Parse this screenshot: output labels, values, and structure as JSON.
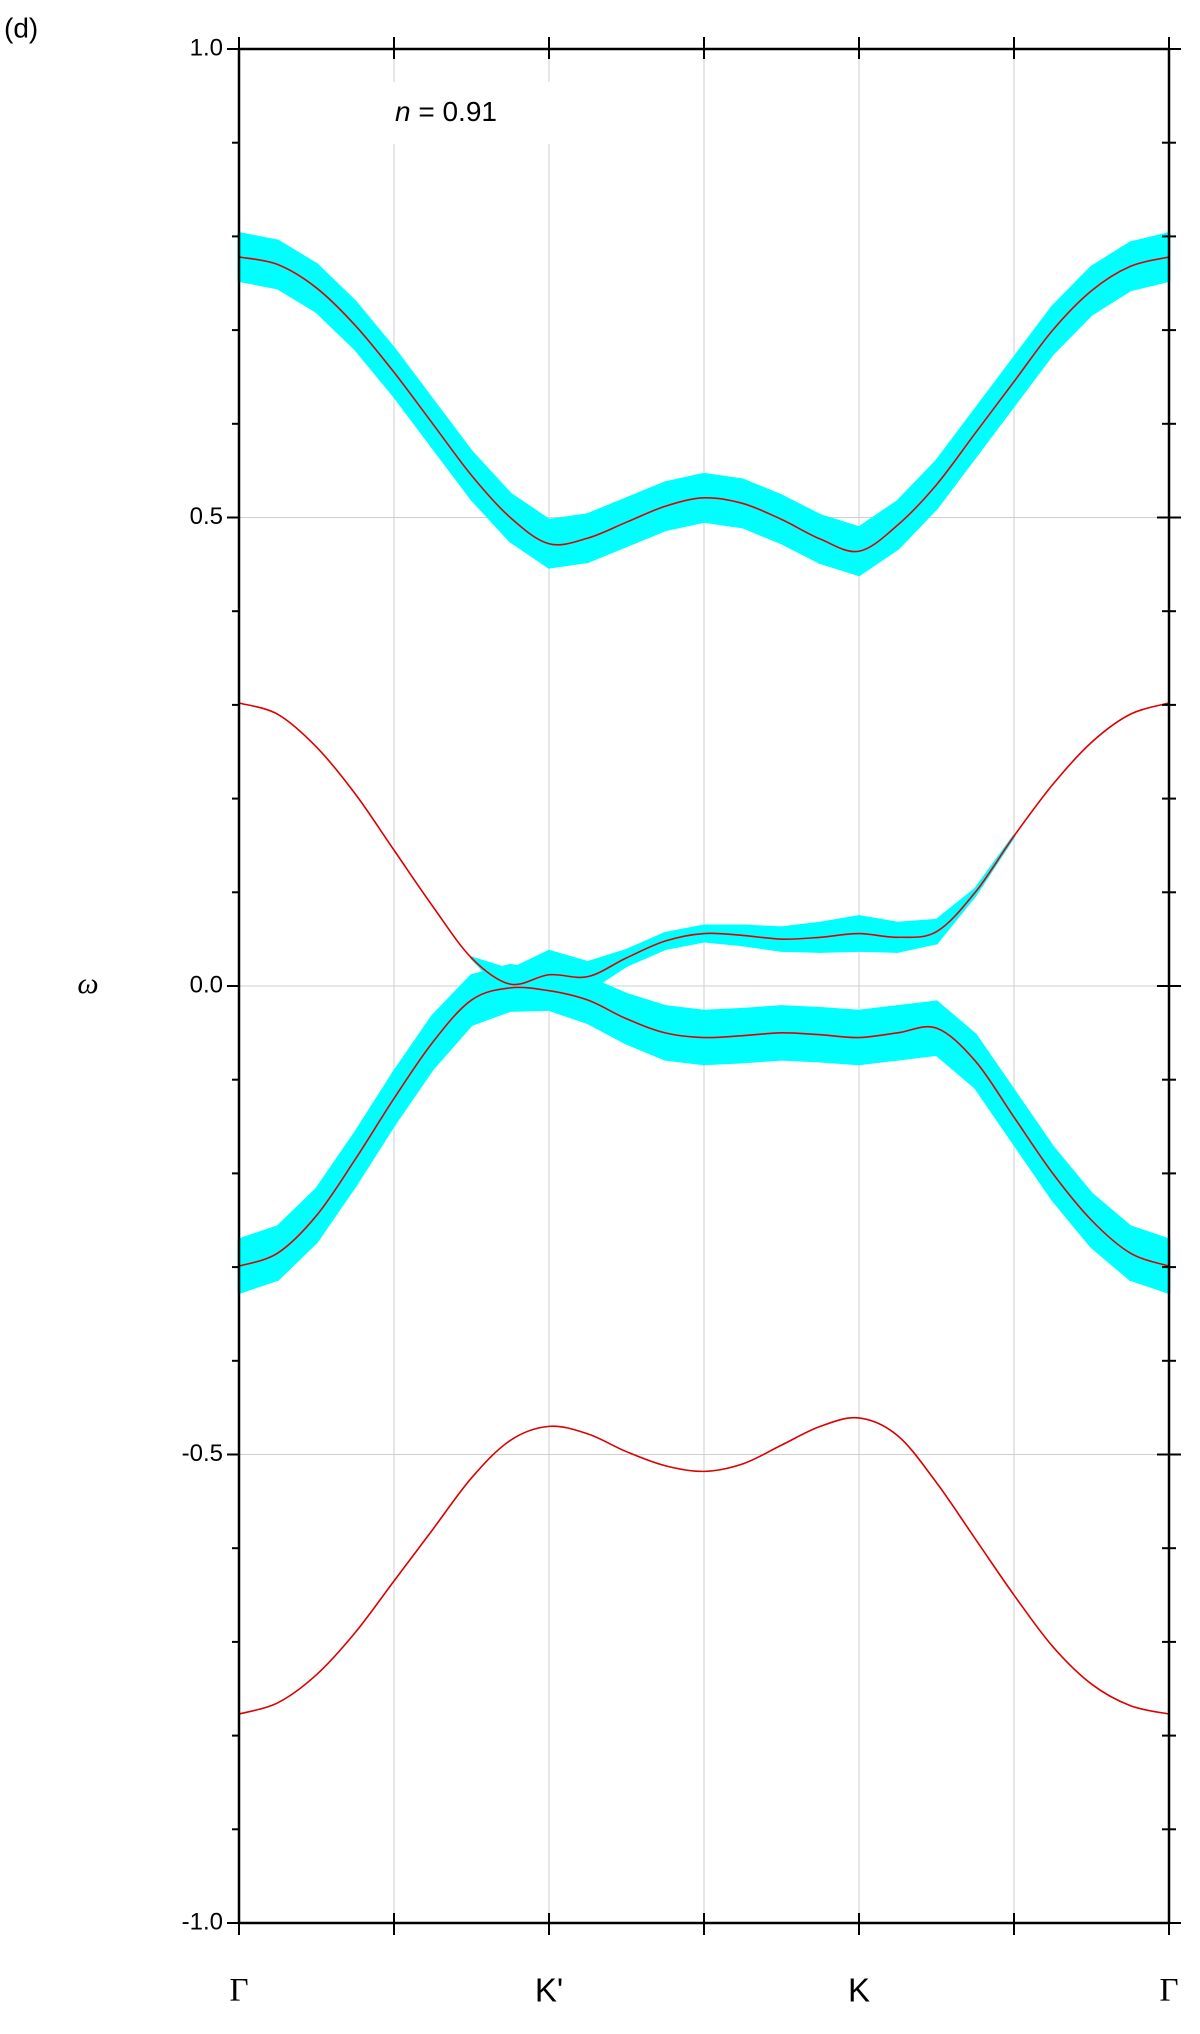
{
  "chart_data": {
    "type": "band-structure",
    "panel_label": "(d)",
    "annotation": [
      "n",
      " = 0.91"
    ],
    "ylabel": "ω",
    "x": [
      0,
      0.125,
      0.25,
      0.375,
      0.5,
      0.625,
      0.75,
      0.875,
      1,
      1.125,
      1.25,
      1.375,
      1.5,
      1.625,
      1.75,
      1.875,
      2,
      2.125,
      2.25,
      2.375,
      2.5,
      2.625,
      2.75,
      2.875,
      3
    ],
    "xlim": [
      0,
      3
    ],
    "xticks": [
      {
        "value": 0,
        "label": "Γ"
      },
      {
        "value": 1,
        "label": "K'"
      },
      {
        "value": 2,
        "label": "K"
      },
      {
        "value": 3,
        "label": "Γ"
      }
    ],
    "xminor_ticks": [
      0.5,
      1.5,
      2.5
    ],
    "ylim": [
      -1,
      1
    ],
    "yticks": [
      {
        "value": 1,
        "label": "1.0"
      },
      {
        "value": 0.5,
        "label": "0.5"
      },
      {
        "value": 0,
        "label": "0.0"
      },
      {
        "value": -0.5,
        "label": "-0.5"
      },
      {
        "value": -1,
        "label": "-1.0"
      }
    ],
    "yminor_ticks": [
      0.9,
      0.8,
      0.7,
      0.6,
      0.4,
      0.3,
      0.2,
      0.1,
      -0.1,
      -0.2,
      -0.3,
      -0.4,
      -0.6,
      -0.7,
      -0.8,
      -0.9
    ],
    "grid": true,
    "series": [
      {
        "color": "#dd0000",
        "band_color": "#00ffff",
        "values": [
          0.778,
          0.77,
          0.745,
          0.705,
          0.655,
          0.6,
          0.545,
          0.5,
          0.472,
          0.478,
          0.495,
          0.512,
          0.521,
          0.515,
          0.498,
          0.477,
          0.464,
          0.492,
          0.535,
          0.59,
          0.645,
          0.7,
          0.742,
          0.768,
          0.778
        ],
        "widths": [
          0.025,
          0.025,
          0.025,
          0.025,
          0.025,
          0.025,
          0.025,
          0.025,
          0.025,
          0.025,
          0.025,
          0.025,
          0.025,
          0.025,
          0.025,
          0.025,
          0.025,
          0.025,
          0.025,
          0.025,
          0.025,
          0.025,
          0.025,
          0.025,
          0.025
        ]
      },
      {
        "color": "#dd0000",
        "band_color": "#00ffff",
        "values": [
          0.302,
          0.29,
          0.255,
          0.205,
          0.145,
          0.085,
          0.03,
          0.002,
          0.012,
          0.01,
          0.03,
          0.048,
          0.056,
          0.054,
          0.05,
          0.052,
          0.056,
          0.052,
          0.058,
          0.1,
          0.16,
          0.215,
          0.26,
          0.29,
          0.302
        ],
        "widths": [
          0,
          0,
          0,
          0,
          0,
          0,
          0,
          0.015,
          0.025,
          0.015,
          0.008,
          0.008,
          0.008,
          0.01,
          0.012,
          0.015,
          0.018,
          0.015,
          0.012,
          0.003,
          0,
          0,
          0,
          0,
          0
        ]
      },
      {
        "color": "#dd0000",
        "band_color": "#00ffff",
        "values": [
          -0.299,
          -0.285,
          -0.245,
          -0.185,
          -0.12,
          -0.06,
          -0.015,
          -0.002,
          -0.005,
          -0.015,
          -0.035,
          -0.05,
          -0.055,
          -0.053,
          -0.05,
          -0.052,
          -0.055,
          -0.05,
          -0.045,
          -0.08,
          -0.14,
          -0.2,
          -0.25,
          -0.285,
          -0.299
        ],
        "widths": [
          0.028,
          0.028,
          0.028,
          0.028,
          0.028,
          0.028,
          0.026,
          0.024,
          0.02,
          0.024,
          0.026,
          0.028,
          0.028,
          0.028,
          0.028,
          0.028,
          0.028,
          0.028,
          0.028,
          0.028,
          0.028,
          0.028,
          0.028,
          0.028,
          0.028
        ]
      },
      {
        "color": "#dd0000",
        "values": [
          -0.777,
          -0.765,
          -0.735,
          -0.69,
          -0.635,
          -0.58,
          -0.525,
          -0.485,
          -0.47,
          -0.478,
          -0.497,
          -0.512,
          -0.518,
          -0.51,
          -0.49,
          -0.47,
          -0.461,
          -0.48,
          -0.53,
          -0.59,
          -0.65,
          -0.705,
          -0.745,
          -0.768,
          -0.777
        ]
      }
    ]
  }
}
